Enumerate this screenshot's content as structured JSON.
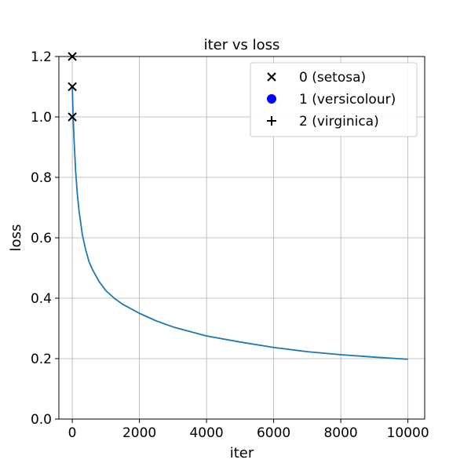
{
  "chart_data": {
    "type": "line",
    "title": "iter vs loss",
    "xlabel": "iter",
    "ylabel": "loss",
    "xlim": [
      -400,
      10500
    ],
    "ylim": [
      0.0,
      1.2
    ],
    "xticks": [
      0,
      2000,
      4000,
      6000,
      8000,
      10000
    ],
    "xtick_labels": [
      "0",
      "2000",
      "4000",
      "6000",
      "8000",
      "10000"
    ],
    "yticks": [
      0.0,
      0.2,
      0.4,
      0.6,
      0.8,
      1.0,
      1.2
    ],
    "ytick_labels": [
      "0.0",
      "0.2",
      "0.4",
      "0.6",
      "0.8",
      "1.0",
      "1.2"
    ],
    "grid": true,
    "legend_position": "top-right",
    "legend": [
      {
        "label": "0 (setosa)",
        "marker": "x",
        "color": "#000000"
      },
      {
        "label": "1 (versicolour)",
        "marker": "o",
        "color": "#0000ff"
      },
      {
        "label": "2 (virginica)",
        "marker": "+",
        "color": "#000000"
      }
    ],
    "series": [
      {
        "color": "#1f77b4",
        "x": [
          0,
          25,
          50,
          100,
          150,
          200,
          300,
          400,
          500,
          600,
          800,
          1000,
          1250,
          1500,
          2000,
          2500,
          3000,
          3500,
          4000,
          5000,
          6000,
          7000,
          8000,
          9000,
          10000
        ],
        "y": [
          1.1,
          1.0,
          0.93,
          0.82,
          0.745,
          0.69,
          0.61,
          0.56,
          0.52,
          0.495,
          0.455,
          0.425,
          0.4,
          0.38,
          0.35,
          0.325,
          0.305,
          0.29,
          0.275,
          0.255,
          0.237,
          0.223,
          0.213,
          0.205,
          0.198
        ]
      }
    ],
    "markers": [
      {
        "x": 0,
        "y": 1.2,
        "marker": "x",
        "color": "#000000"
      },
      {
        "x": 0,
        "y": 1.1,
        "marker": "x",
        "color": "#000000"
      },
      {
        "x": 0,
        "y": 1.0,
        "marker": "x",
        "color": "#000000"
      }
    ]
  }
}
